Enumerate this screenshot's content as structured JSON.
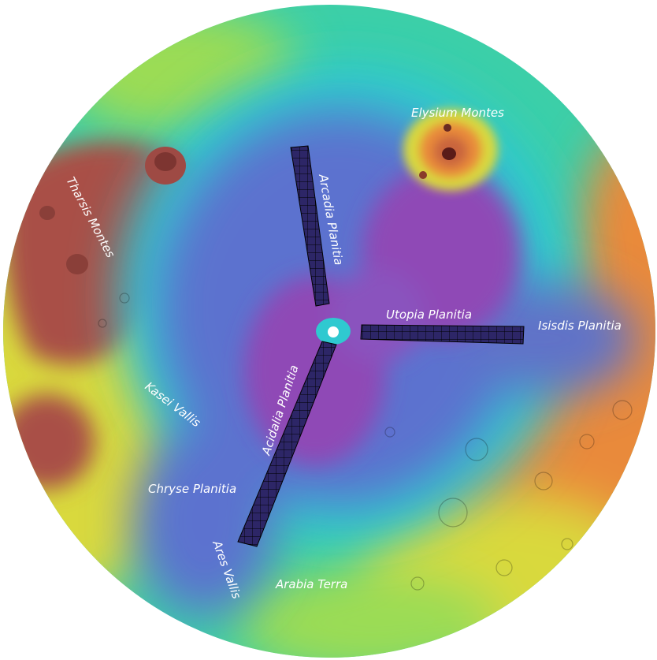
{
  "map": {
    "labels": {
      "elysium_montes": "Elysium Montes",
      "tharsis_montes": "Tharsis Montes",
      "arcadia_planitia": "Arcadia Planitia",
      "utopia_planitia": "Utopia Planitia",
      "isisdis_planitia": "Isisdis Planitia",
      "kasei_vallis": "Kasei Vallis",
      "acidalia_planitia": "Acidalia Planitia",
      "chryse_planitia": "Chryse Planitia",
      "ares_vallis": "Ares Vallis",
      "arabia_terra": "Arabia Terra"
    },
    "colors": {
      "highest": "#f1f1f1",
      "high": "#a94f47",
      "mid_high": "#e98a3a",
      "mid": "#d9d93e",
      "mid_low": "#52d36e",
      "low": "#2fc9d0",
      "lower": "#5b72cf",
      "lowest": "#8f48b6",
      "grid_fill": "#2d2667",
      "pole_marker": "#ffffff",
      "label_text": "#ffffff"
    },
    "projection": "north polar stereographic",
    "swaths": [
      "Arcadia Planitia",
      "Utopia Planitia",
      "Acidalia Planitia"
    ]
  }
}
